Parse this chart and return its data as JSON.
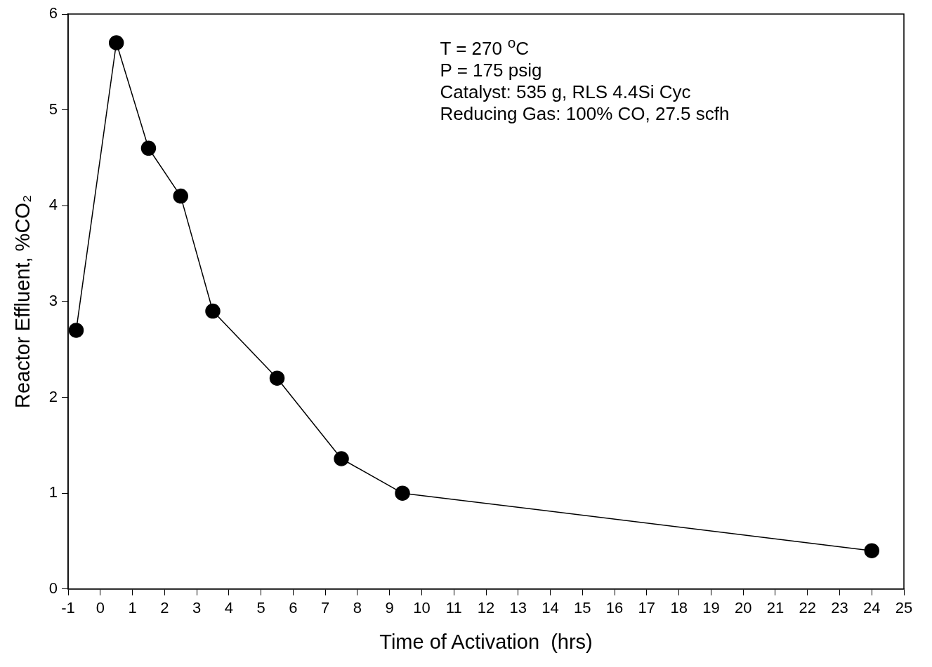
{
  "chart_data": {
    "type": "line",
    "xlabel": "Time of Activation  (hrs)",
    "ylabel": "Reactor Effluent, %CO₂",
    "annotations": [
      "T = 270 $^{o}$C",
      "P = 175 psig",
      "Catalyst: 535 g, RLS 4.4Si Cyc",
      "Reducing Gas: 100% CO, 27.5 scfh"
    ],
    "x": [
      -0.75,
      0.5,
      1.5,
      2.5,
      3.5,
      5.5,
      7.5,
      9.4,
      24
    ],
    "series": [
      {
        "color": "#000000",
        "values": [
          2.7,
          5.7,
          4.6,
          4.1,
          2.9,
          2.2,
          1.36,
          1.0,
          0.4
        ]
      }
    ],
    "xlim": [
      -1,
      25
    ],
    "xticks": [
      -1,
      0,
      1,
      2,
      3,
      4,
      5,
      6,
      7,
      8,
      9,
      10,
      11,
      12,
      13,
      14,
      15,
      16,
      17,
      18,
      19,
      20,
      21,
      22,
      23,
      24,
      25
    ],
    "ylim": [
      0,
      6
    ],
    "yticks": [
      0,
      1,
      2,
      3,
      4,
      5,
      6
    ],
    "grid": false,
    "legend": false,
    "marker": "circle",
    "line_style": "solid"
  }
}
